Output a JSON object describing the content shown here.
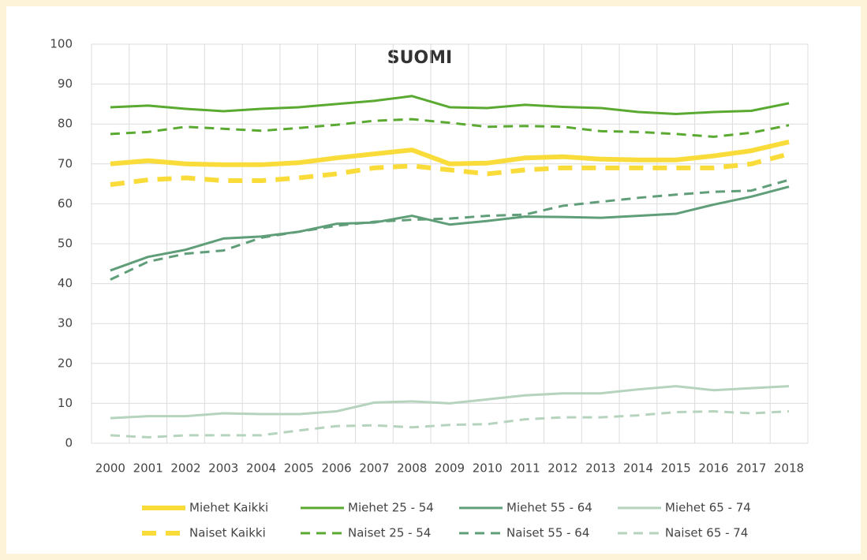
{
  "chart_data": {
    "type": "line",
    "title": "SUOMI",
    "categories": [
      "2000",
      "2001",
      "2002",
      "2003",
      "2004",
      "2005",
      "2006",
      "2007",
      "2008",
      "2009",
      "2010",
      "2011",
      "2012",
      "2013",
      "2014",
      "2015",
      "2016",
      "2017",
      "2018"
    ],
    "ylim": [
      0,
      100
    ],
    "yticks": [
      0,
      10,
      20,
      30,
      40,
      50,
      60,
      70,
      80,
      90,
      100
    ],
    "grid": true,
    "legend": "bottom",
    "series": [
      {
        "name": "Miehet Kaikki",
        "color": "#f9dc3a",
        "dashed": false,
        "values": [
          70,
          70.8,
          70,
          69.8,
          69.8,
          70.3,
          71.5,
          72.5,
          73.5,
          70,
          70.2,
          71.5,
          71.8,
          71.2,
          71,
          71,
          72,
          73.3,
          75.5
        ]
      },
      {
        "name": "Miehet 25 - 54",
        "color": "#5aaa32",
        "dashed": false,
        "values": [
          84.2,
          84.6,
          83.8,
          83.2,
          83.8,
          84.2,
          85,
          85.8,
          87,
          84.2,
          84,
          84.8,
          84.3,
          84,
          83,
          82.5,
          83,
          83.3,
          85.2
        ]
      },
      {
        "name": "Miehet 55 - 64",
        "color": "#5f9e78",
        "dashed": false,
        "values": [
          43.3,
          46.7,
          48.5,
          51.3,
          51.8,
          53,
          55,
          55.3,
          57,
          54.8,
          55.7,
          56.8,
          56.7,
          56.5,
          57,
          57.5,
          59.8,
          61.8,
          64.3
        ]
      },
      {
        "name": "Miehet 65 - 74",
        "color": "#b5d3bd",
        "dashed": false,
        "values": [
          6.3,
          6.8,
          6.8,
          7.5,
          7.3,
          7.3,
          8,
          10.2,
          10.5,
          10,
          11,
          12,
          12.5,
          12.5,
          13.5,
          14.3,
          13.3,
          13.8,
          14.3
        ]
      },
      {
        "name": "Naiset Kaikki",
        "color": "#f9dc3a",
        "dashed": true,
        "values": [
          64.8,
          66,
          66.5,
          65.8,
          65.8,
          66.5,
          67.5,
          69,
          69.5,
          68.5,
          67.5,
          68.5,
          69,
          69,
          69,
          69,
          69,
          70,
          72.5
        ]
      },
      {
        "name": "Naiset 25 - 54",
        "color": "#5aaa32",
        "dashed": true,
        "values": [
          77.5,
          78,
          79.3,
          78.8,
          78.3,
          79,
          79.8,
          80.8,
          81.2,
          80.3,
          79.3,
          79.5,
          79.3,
          78.2,
          78,
          77.5,
          76.8,
          77.8,
          79.7
        ]
      },
      {
        "name": "Naiset 55 - 64",
        "color": "#5f9e78",
        "dashed": true,
        "values": [
          41,
          45.5,
          47.5,
          48.3,
          51.5,
          53,
          54.5,
          55.5,
          56,
          56.3,
          57,
          57.3,
          59.5,
          60.5,
          61.5,
          62.3,
          63,
          63.3,
          66
        ]
      },
      {
        "name": "Naiset 65 - 74",
        "color": "#b5d3bd",
        "dashed": true,
        "values": [
          2,
          1.5,
          2,
          2,
          2,
          3.2,
          4.3,
          4.5,
          4,
          4.6,
          4.8,
          6,
          6.5,
          6.5,
          7,
          7.8,
          8,
          7.5,
          8
        ]
      }
    ]
  }
}
